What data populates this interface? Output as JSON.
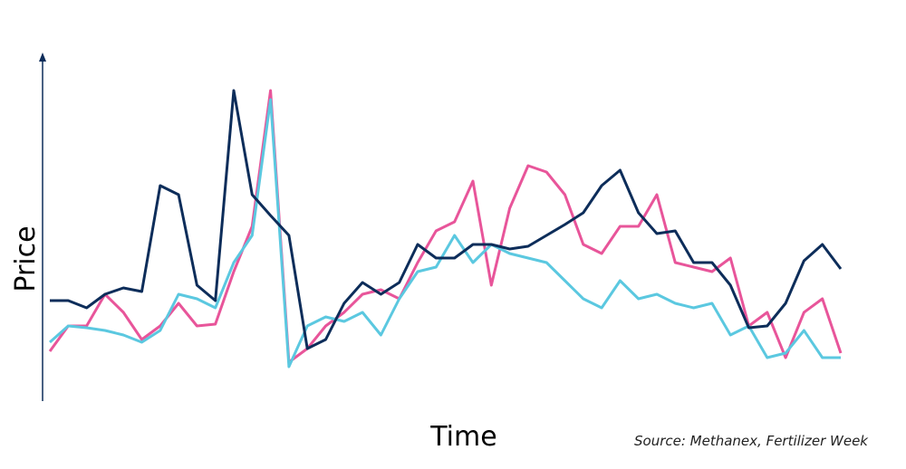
{
  "chart_data": {
    "type": "line",
    "y_label": "Price",
    "x_label": "Time",
    "source": "Source: Methanex, Fertilizer Week",
    "ylim": [
      0,
      381
    ],
    "series": [
      {
        "color": "#e8559a",
        "values": [
          55,
          83,
          83,
          118,
          98,
          68,
          83,
          108,
          83,
          85,
          143,
          193,
          343,
          43,
          58,
          83,
          98,
          118,
          123,
          113,
          153,
          188,
          198,
          243,
          128,
          213,
          260,
          253,
          228,
          173,
          163,
          193,
          193,
          228,
          153,
          148,
          143,
          158,
          83,
          98,
          48,
          98,
          113,
          53
        ]
      },
      {
        "color": "#5bc8e0",
        "values": [
          65,
          83,
          81,
          78,
          73,
          65,
          78,
          118,
          113,
          103,
          153,
          183,
          333,
          38,
          83,
          93,
          88,
          98,
          73,
          113,
          143,
          148,
          183,
          153,
          173,
          163,
          158,
          153,
          133,
          113,
          103,
          133,
          113,
          118,
          108,
          103,
          108,
          73,
          83,
          48,
          53,
          78,
          48,
          48
        ]
      },
      {
        "color": "#0d2d5a",
        "values": [
          111,
          111,
          103,
          118,
          125,
          121,
          238,
          228,
          128,
          111,
          343,
          228,
          205,
          183,
          58,
          68,
          108,
          131,
          118,
          131,
          173,
          158,
          158,
          173,
          173,
          168,
          171,
          183,
          195,
          208,
          238,
          255,
          208,
          185,
          188,
          153,
          153,
          128,
          81,
          83,
          108,
          155,
          173,
          146
        ]
      }
    ]
  }
}
